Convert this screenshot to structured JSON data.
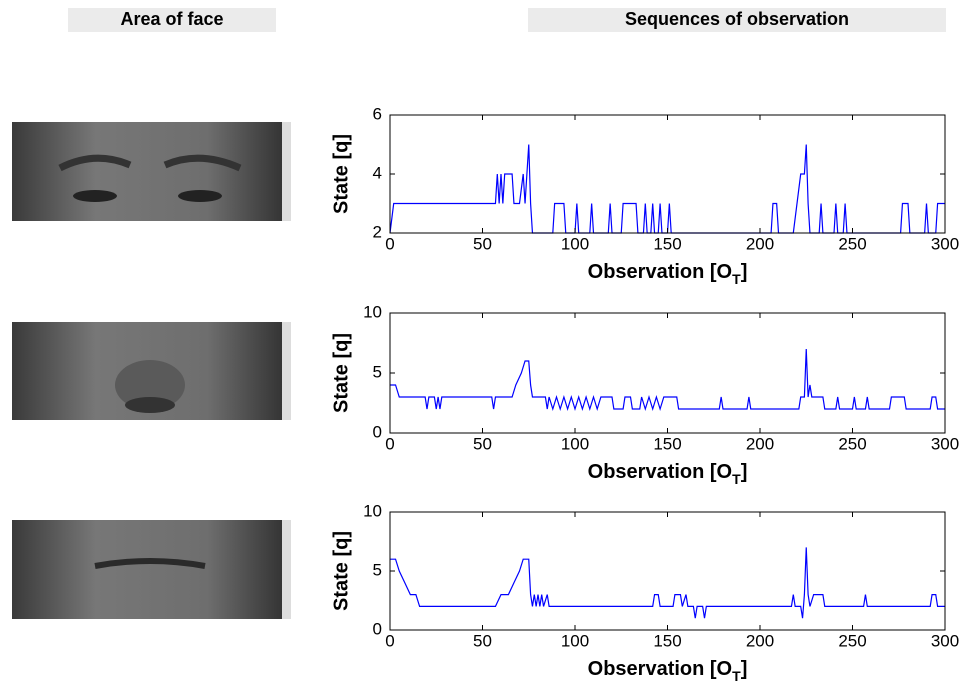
{
  "header": {
    "left": "Area of face",
    "right": "Sequences of observation"
  },
  "chart_data": [
    {
      "type": "line",
      "ylabel": "State [q]",
      "xlabel": {
        "text": "Observation [O",
        "subscript": "T",
        "suffix": "]"
      },
      "xlim": [
        0,
        300
      ],
      "xticks": [
        0,
        50,
        100,
        150,
        200,
        250,
        300
      ],
      "ylim": [
        2,
        6
      ],
      "yticks": [
        2,
        4,
        6
      ],
      "x": [
        0,
        2,
        57,
        58,
        59,
        60,
        61,
        62,
        66,
        67,
        70,
        72,
        73,
        74,
        75,
        76,
        77,
        88,
        89,
        94,
        95,
        100,
        101,
        102,
        108,
        109,
        110,
        118,
        119,
        120,
        125,
        126,
        133,
        134,
        137,
        138,
        139,
        141,
        142,
        143,
        145,
        146,
        147,
        150,
        151,
        152,
        206,
        207,
        209,
        210,
        218,
        220,
        222,
        224,
        225,
        226,
        227,
        232,
        233,
        234,
        240,
        241,
        242,
        245,
        246,
        247,
        276,
        277,
        280,
        281,
        289,
        290,
        291,
        295,
        296,
        300
      ],
      "series": [
        {
          "color": "#0000ff",
          "values": [
            2,
            3,
            3,
            4,
            3,
            4,
            3,
            4,
            4,
            3,
            3,
            4,
            3,
            4,
            5,
            3,
            2,
            2,
            3,
            3,
            2,
            2,
            3,
            2,
            2,
            3,
            2,
            2,
            3,
            2,
            2,
            3,
            3,
            2,
            2,
            3,
            2,
            2,
            3,
            2,
            2,
            3,
            2,
            2,
            3,
            2,
            2,
            3,
            3,
            2,
            2,
            3,
            4,
            4,
            5,
            3,
            2,
            2,
            3,
            2,
            2,
            3,
            2,
            2,
            3,
            2,
            2,
            3,
            3,
            2,
            2,
            3,
            2,
            2,
            3,
            3
          ]
        }
      ]
    },
    {
      "type": "line",
      "ylabel": "State [q]",
      "xlabel": {
        "text": "Observation [O",
        "subscript": "T",
        "suffix": "]"
      },
      "xlim": [
        0,
        300
      ],
      "xticks": [
        0,
        50,
        100,
        150,
        200,
        250,
        300
      ],
      "ylim": [
        0,
        10
      ],
      "yticks": [
        0,
        5,
        10
      ],
      "x": [
        0,
        3,
        5,
        19,
        20,
        21,
        24,
        25,
        26,
        27,
        28,
        55,
        56,
        57,
        66,
        68,
        71,
        73,
        75,
        76,
        77,
        84,
        85,
        86,
        88,
        90,
        92,
        94,
        96,
        98,
        100,
        102,
        104,
        106,
        108,
        110,
        112,
        114,
        120,
        121,
        126,
        127,
        130,
        131,
        135,
        136,
        138,
        140,
        142,
        144,
        146,
        148,
        155,
        156,
        178,
        179,
        180,
        193,
        194,
        195,
        221,
        222,
        224,
        225,
        226,
        227,
        228,
        234,
        235,
        241,
        242,
        243,
        250,
        251,
        252,
        257,
        258,
        259,
        270,
        271,
        278,
        279,
        292,
        293,
        295,
        296,
        300
      ],
      "series": [
        {
          "color": "#0000ff",
          "values": [
            4,
            4,
            3,
            3,
            2,
            3,
            3,
            2,
            3,
            2,
            3,
            3,
            2,
            3,
            3,
            4,
            5,
            6,
            6,
            4,
            3,
            3,
            2,
            3,
            2,
            3,
            2,
            3,
            2,
            3,
            2,
            3,
            2,
            3,
            2,
            3,
            2,
            3,
            3,
            2,
            2,
            3,
            3,
            2,
            2,
            3,
            2,
            3,
            2,
            3,
            2,
            3,
            3,
            2,
            2,
            3,
            2,
            2,
            3,
            2,
            2,
            3,
            3,
            7,
            3,
            4,
            3,
            3,
            2,
            2,
            3,
            2,
            2,
            3,
            2,
            2,
            3,
            2,
            2,
            3,
            3,
            2,
            2,
            3,
            3,
            2,
            2
          ]
        }
      ]
    },
    {
      "type": "line",
      "ylabel": "State [q]",
      "xlabel": {
        "text": "Observation [O",
        "subscript": "T",
        "suffix": "]"
      },
      "xlim": [
        0,
        300
      ],
      "xticks": [
        0,
        50,
        100,
        150,
        200,
        250,
        300
      ],
      "ylim": [
        0,
        10
      ],
      "yticks": [
        0,
        5,
        10
      ],
      "x": [
        0,
        3,
        5,
        8,
        11,
        14,
        16,
        57,
        60,
        64,
        67,
        70,
        72,
        75,
        76,
        77,
        78,
        79,
        80,
        81,
        82,
        83,
        85,
        86,
        142,
        143,
        145,
        146,
        153,
        154,
        157,
        158,
        160,
        161,
        164,
        165,
        166,
        169,
        170,
        171,
        217,
        218,
        219,
        222,
        223,
        224,
        225,
        226,
        227,
        229,
        234,
        235,
        256,
        257,
        258,
        292,
        293,
        295,
        296,
        300
      ],
      "series": [
        {
          "color": "#0000ff",
          "values": [
            6,
            6,
            5,
            4,
            3,
            3,
            2,
            2,
            3,
            3,
            4,
            5,
            6,
            6,
            3,
            2,
            3,
            2,
            3,
            2,
            3,
            2,
            3,
            2,
            2,
            3,
            3,
            2,
            2,
            3,
            3,
            2,
            3,
            2,
            2,
            1,
            2,
            2,
            1,
            2,
            2,
            3,
            2,
            2,
            1,
            3,
            7,
            3,
            2,
            3,
            3,
            2,
            2,
            3,
            2,
            2,
            3,
            3,
            2,
            2
          ]
        }
      ]
    }
  ]
}
